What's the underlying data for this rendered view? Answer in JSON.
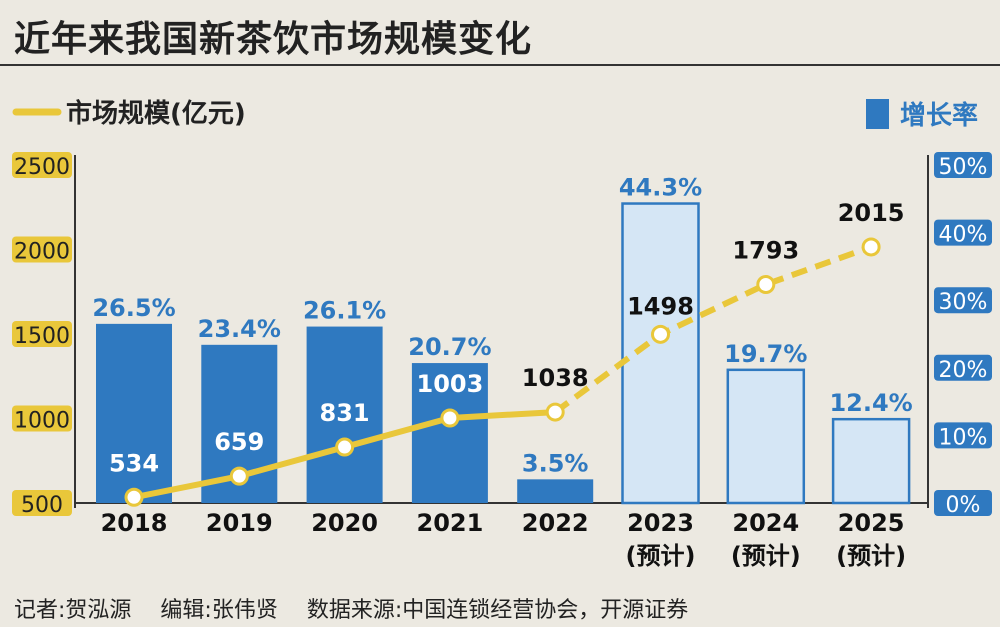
{
  "title": "近年来我国新茶饮市场规模变化",
  "footer": {
    "reporter": "记者:贺泓源",
    "editor": "编辑:张伟贤",
    "source": "数据来源:中国连锁经营协会，开源证券"
  },
  "colors": {
    "line": "#e9c73a",
    "bar_actual": "#2f79c0",
    "bar_forecast_fill": "#d5e6f5",
    "bar_forecast_stroke": "#2f79c0",
    "pct_label": "#2f79c0",
    "left_axis_badge": "#e9c73a",
    "right_axis_badge": "#2f79c0"
  },
  "chart_data": {
    "type": "bar+line",
    "categories": [
      "2018",
      "2019",
      "2020",
      "2021",
      "2022",
      "2023",
      "2024",
      "2025"
    ],
    "category_notes": [
      "",
      "",
      "",
      "",
      "",
      "(预计)",
      "(预计)",
      "(预计)"
    ],
    "forecast": [
      false,
      false,
      false,
      false,
      false,
      true,
      true,
      true
    ],
    "series": [
      {
        "name": "市场规模(亿元)",
        "kind": "line",
        "axis": "left",
        "values": [
          534,
          659,
          831,
          1003,
          1038,
          1498,
          1793,
          2015
        ],
        "labels": [
          "534",
          "659",
          "831",
          "1003",
          "1038",
          "1498",
          "1793",
          "2015"
        ]
      },
      {
        "name": "增长率",
        "kind": "bar",
        "axis": "right",
        "values": [
          26.5,
          23.4,
          26.1,
          20.7,
          3.5,
          44.3,
          19.7,
          12.4
        ],
        "labels": [
          "26.5%",
          "23.4%",
          "26.1%",
          "20.7%",
          "3.5%",
          "44.3%",
          "19.7%",
          "12.4%"
        ]
      }
    ],
    "left_axis": {
      "min": 500,
      "max": 2500,
      "ticks": [
        "500",
        "1000",
        "1500",
        "2000",
        "2500"
      ],
      "tick_values": [
        500,
        1000,
        1500,
        2000,
        2500
      ]
    },
    "right_axis": {
      "min": 0,
      "max": 50,
      "ticks": [
        "0%",
        "10%",
        "20%",
        "30%",
        "40%",
        "50%"
      ],
      "tick_values": [
        0,
        10,
        20,
        30,
        40,
        50
      ]
    },
    "grid": false,
    "legend_placement": "top"
  }
}
